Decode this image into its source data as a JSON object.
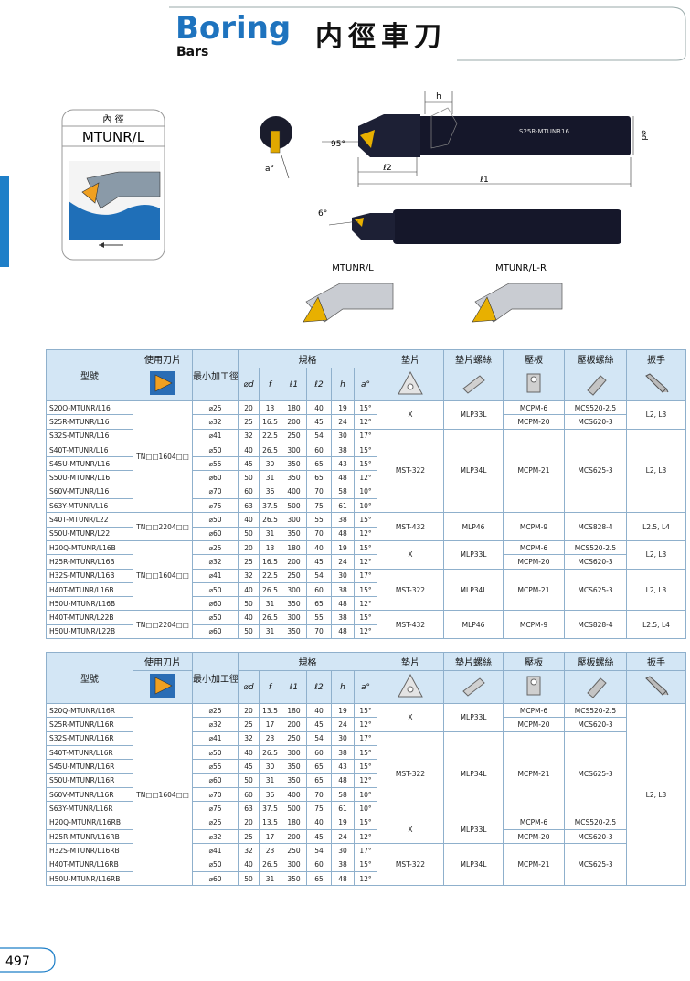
{
  "header": {
    "title": "Boring",
    "subtitle": "Bars",
    "chinese_title": "内徑車刀"
  },
  "side_box": {
    "label": "內 徑",
    "model": "MTUNR/L"
  },
  "diagram": {
    "h": "h",
    "d": "⌀d",
    "angle_main": "95°",
    "angle_a": "a°",
    "l2": "ℓ2",
    "l1": "ℓ1",
    "angle_small": "6°",
    "bar_marking": "S25R-MTUNR16",
    "variant_left": "MTUNR/L",
    "variant_right": "MTUNR/L-R"
  },
  "tables": [
    {
      "headers": {
        "model": "型號",
        "insert": "使用刀片",
        "min_bore": "最小加工徑",
        "spec": "規格",
        "shim": "墊片",
        "shim_screw": "墊片螺絲",
        "clamp": "壓板",
        "clamp_screw": "壓板螺絲",
        "wrench": "扳手"
      },
      "spec_headers": [
        "⌀d",
        "f",
        "ℓ1",
        "ℓ2",
        "h",
        "a°"
      ],
      "rows": [
        [
          "S20Q-MTUNR/L16",
          "⌀25",
          "20",
          "13",
          "180",
          "40",
          "19",
          "15°"
        ],
        [
          "S25R-MTUNR/L16",
          "⌀32",
          "25",
          "16.5",
          "200",
          "45",
          "24",
          "12°"
        ],
        [
          "S32S-MTUNR/L16",
          "⌀41",
          "32",
          "22.5",
          "250",
          "54",
          "30",
          "17°"
        ],
        [
          "S40T-MTUNR/L16",
          "⌀50",
          "40",
          "26.5",
          "300",
          "60",
          "38",
          "15°"
        ],
        [
          "S45U-MTUNR/L16",
          "⌀55",
          "45",
          "30",
          "350",
          "65",
          "43",
          "15°"
        ],
        [
          "S50U-MTUNR/L16",
          "⌀60",
          "50",
          "31",
          "350",
          "65",
          "48",
          "12°"
        ],
        [
          "S60V-MTUNR/L16",
          "⌀70",
          "60",
          "36",
          "400",
          "70",
          "58",
          "10°"
        ],
        [
          "S63Y-MTUNR/L16",
          "⌀75",
          "63",
          "37.5",
          "500",
          "75",
          "61",
          "10°"
        ],
        [
          "S40T-MTUNR/L22",
          "⌀50",
          "40",
          "26.5",
          "300",
          "55",
          "38",
          "15°"
        ],
        [
          "S50U-MTUNR/L22",
          "⌀60",
          "50",
          "31",
          "350",
          "70",
          "48",
          "12°"
        ],
        [
          "H20Q-MTUNR/L16B",
          "⌀25",
          "20",
          "13",
          "180",
          "40",
          "19",
          "15°"
        ],
        [
          "H25R-MTUNR/L16B",
          "⌀32",
          "25",
          "16.5",
          "200",
          "45",
          "24",
          "12°"
        ],
        [
          "H32S-MTUNR/L16B",
          "⌀41",
          "32",
          "22.5",
          "250",
          "54",
          "30",
          "17°"
        ],
        [
          "H40T-MTUNR/L16B",
          "⌀50",
          "40",
          "26.5",
          "300",
          "60",
          "38",
          "15°"
        ],
        [
          "H50U-MTUNR/L16B",
          "⌀60",
          "50",
          "31",
          "350",
          "65",
          "48",
          "12°"
        ],
        [
          "H40T-MTUNR/L22B",
          "⌀50",
          "40",
          "26.5",
          "300",
          "55",
          "38",
          "15°"
        ],
        [
          "H50U-MTUNR/L22B",
          "⌀60",
          "50",
          "31",
          "350",
          "70",
          "48",
          "12°"
        ]
      ],
      "insert": [
        "TN□□1604□□",
        "TN□□2204□□",
        "TN□□1604□□",
        "TN□□2204□□"
      ],
      "shim": [
        "X",
        "MST-322",
        "MST-432",
        "X",
        "MST-322",
        "MST-432"
      ],
      "shim_screw": [
        "MLP33L",
        "MLP34L",
        "MLP46",
        "MLP33L",
        "MLP34L",
        "MLP46"
      ],
      "clamp": [
        "MCPM-6",
        "MCPM-20",
        "MCPM-21",
        "MCPM-9",
        "MCPM-6",
        "MCPM-20",
        "MCPM-21",
        "MCPM-9"
      ],
      "clamp_screw": [
        "MCS520-2.5",
        "MCS620-3",
        "MCS625-3",
        "MCS828-4",
        "MCS520-2.5",
        "MCS620-3",
        "MCS625-3",
        "MCS828-4"
      ],
      "wrench": [
        "L2, L3",
        "L2, L3",
        "L2.5, L4",
        "L2, L3",
        "L2, L3",
        "L2.5, L4"
      ]
    },
    {
      "headers": {
        "model": "型號",
        "insert": "使用刀片",
        "min_bore": "最小加工徑",
        "spec": "規格",
        "shim": "墊片",
        "shim_screw": "墊片螺絲",
        "clamp": "壓板",
        "clamp_screw": "壓板螺絲",
        "wrench": "扳手"
      },
      "spec_headers": [
        "⌀d",
        "f",
        "ℓ1",
        "ℓ2",
        "h",
        "a°"
      ],
      "rows": [
        [
          "S20Q-MTUNR/L16R",
          "⌀25",
          "20",
          "13.5",
          "180",
          "40",
          "19",
          "15°"
        ],
        [
          "S25R-MTUNR/L16R",
          "⌀32",
          "25",
          "17",
          "200",
          "45",
          "24",
          "12°"
        ],
        [
          "S32S-MTUNR/L16R",
          "⌀41",
          "32",
          "23",
          "250",
          "54",
          "30",
          "17°"
        ],
        [
          "S40T-MTUNR/L16R",
          "⌀50",
          "40",
          "26.5",
          "300",
          "60",
          "38",
          "15°"
        ],
        [
          "S45U-MTUNR/L16R",
          "⌀55",
          "45",
          "30",
          "350",
          "65",
          "43",
          "15°"
        ],
        [
          "S50U-MTUNR/L16R",
          "⌀60",
          "50",
          "31",
          "350",
          "65",
          "48",
          "12°"
        ],
        [
          "S60V-MTUNR/L16R",
          "⌀70",
          "60",
          "36",
          "400",
          "70",
          "58",
          "10°"
        ],
        [
          "S63Y-MTUNR/L16R",
          "⌀75",
          "63",
          "37.5",
          "500",
          "75",
          "61",
          "10°"
        ],
        [
          "H20Q-MTUNR/L16RB",
          "⌀25",
          "20",
          "13.5",
          "180",
          "40",
          "19",
          "15°"
        ],
        [
          "H25R-MTUNR/L16RB",
          "⌀32",
          "25",
          "17",
          "200",
          "45",
          "24",
          "12°"
        ],
        [
          "H32S-MTUNR/L16RB",
          "⌀41",
          "32",
          "23",
          "250",
          "54",
          "30",
          "17°"
        ],
        [
          "H40T-MTUNR/L16RB",
          "⌀50",
          "40",
          "26.5",
          "300",
          "60",
          "38",
          "15°"
        ],
        [
          "H50U-MTUNR/L16RB",
          "⌀60",
          "50",
          "31",
          "350",
          "65",
          "48",
          "12°"
        ]
      ],
      "insert": [
        "TN□□1604□□"
      ],
      "shim": [
        "X",
        "MST-322",
        "X",
        "MST-322"
      ],
      "shim_screw": [
        "MLP33L",
        "MLP34L",
        "MLP33L",
        "MLP34L"
      ],
      "clamp": [
        "MCPM-6",
        "MCPM-20",
        "MCPM-21",
        "MCPM-6",
        "MCPM-20",
        "MCPM-21"
      ],
      "clamp_screw": [
        "MCS520-2.5",
        "MCS620-3",
        "MCS625-3",
        "MCS520-2.5",
        "MCS620-3",
        "MCS625-3"
      ],
      "wrench": [
        "L2, L3"
      ]
    }
  ],
  "page_number": "497"
}
